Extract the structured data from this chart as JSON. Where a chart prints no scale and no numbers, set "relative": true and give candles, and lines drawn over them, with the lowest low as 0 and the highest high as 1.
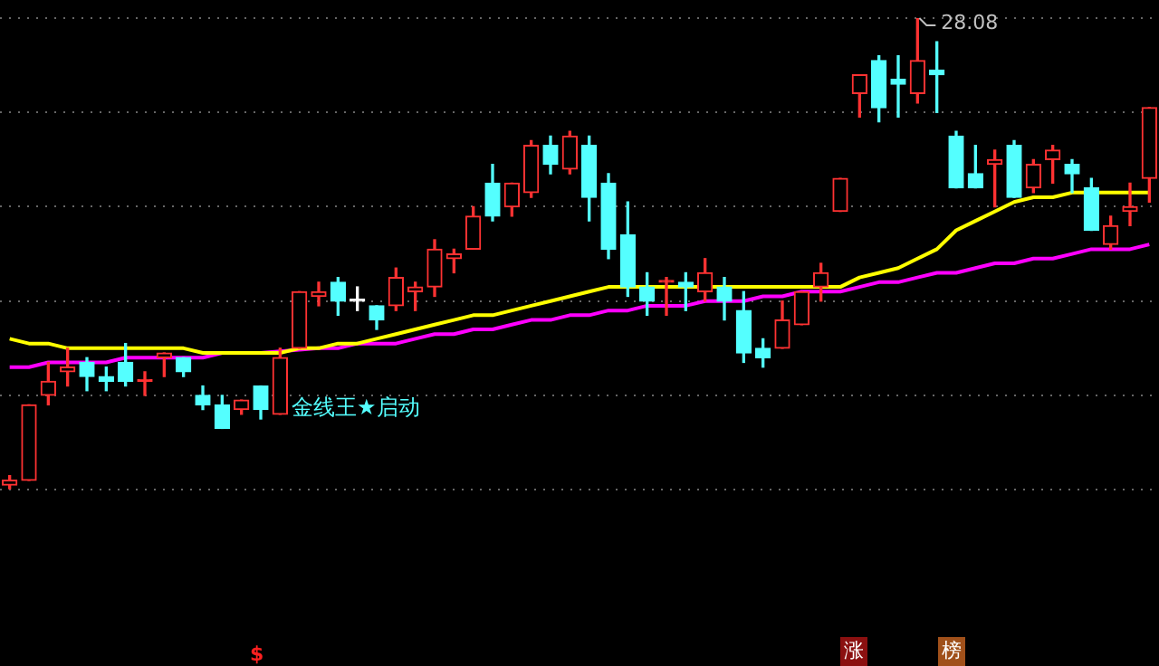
{
  "chart_data": {
    "type": "candlestick",
    "relative": true,
    "grid": "y",
    "legend": false,
    "categories": [
      null,
      null,
      null,
      null,
      null,
      null,
      null,
      null,
      null,
      null,
      null,
      null,
      null,
      null,
      null,
      null,
      null,
      null,
      null,
      null,
      null,
      null,
      null,
      null,
      null,
      null,
      null,
      null,
      null,
      null,
      null,
      null,
      null,
      null,
      null,
      null,
      null,
      null,
      null,
      null,
      null,
      null,
      null,
      null,
      null,
      null,
      null,
      null,
      null,
      null,
      null,
      null,
      null,
      null,
      null,
      null,
      null,
      null,
      null,
      null
    ],
    "ohlc": [
      [
        0.01,
        0.03,
        0,
        0.02
      ],
      [
        0.02,
        0.18,
        0.02,
        0.18
      ],
      [
        0.2,
        0.27,
        0.18,
        0.23
      ],
      [
        0.25,
        0.3,
        0.22,
        0.26
      ],
      [
        0.27,
        0.28,
        0.21,
        0.24
      ],
      [
        0.24,
        0.26,
        0.21,
        0.23
      ],
      [
        0.27,
        0.31,
        0.22,
        0.23
      ],
      [
        0.23,
        0.25,
        0.2,
        0.23
      ],
      [
        0.28,
        0.29,
        0.24,
        0.29
      ],
      [
        0.28,
        0.28,
        0.24,
        0.25
      ],
      [
        0.2,
        0.22,
        0.17,
        0.18
      ],
      [
        0.18,
        0.2,
        0.13,
        0.13
      ],
      [
        0.17,
        0.19,
        0.16,
        0.19
      ],
      [
        0.22,
        0.22,
        0.15,
        0.17
      ],
      [
        0.16,
        0.3,
        0.16,
        0.28
      ],
      [
        0.3,
        0.42,
        0.3,
        0.42
      ],
      [
        0.41,
        0.44,
        0.39,
        0.42
      ],
      [
        0.44,
        0.45,
        0.37,
        0.4
      ],
      [
        0.4,
        0.43,
        0.38,
        0.4
      ],
      [
        0.39,
        0.39,
        0.34,
        0.36
      ],
      [
        0.39,
        0.47,
        0.38,
        0.45
      ],
      [
        0.42,
        0.44,
        0.38,
        0.43
      ],
      [
        0.43,
        0.53,
        0.41,
        0.51
      ],
      [
        0.49,
        0.51,
        0.46,
        0.5
      ],
      [
        0.51,
        0.6,
        0.51,
        0.58
      ],
      [
        0.65,
        0.69,
        0.57,
        0.58
      ],
      [
        0.6,
        0.65,
        0.58,
        0.65
      ],
      [
        0.63,
        0.74,
        0.62,
        0.73
      ],
      [
        0.73,
        0.75,
        0.67,
        0.69
      ],
      [
        0.68,
        0.76,
        0.67,
        0.75
      ],
      [
        0.73,
        0.75,
        0.57,
        0.62
      ],
      [
        0.65,
        0.67,
        0.49,
        0.51
      ],
      [
        0.54,
        0.61,
        0.41,
        0.43
      ],
      [
        0.43,
        0.46,
        0.37,
        0.4
      ],
      [
        0.44,
        0.45,
        0.37,
        0.44
      ],
      [
        0.44,
        0.46,
        0.38,
        0.43
      ],
      [
        0.42,
        0.49,
        0.4,
        0.46
      ],
      [
        0.43,
        0.45,
        0.36,
        0.4
      ],
      [
        0.38,
        0.42,
        0.27,
        0.29
      ],
      [
        0.3,
        0.32,
        0.26,
        0.28
      ],
      [
        0.3,
        0.4,
        0.3,
        0.36
      ],
      [
        0.35,
        0.42,
        0.35,
        0.42
      ],
      [
        0.43,
        0.48,
        0.4,
        0.46
      ],
      [
        0.59,
        0.66,
        0.59,
        0.66
      ],
      [
        0.84,
        0.88,
        0.79,
        0.88
      ],
      [
        0.91,
        0.92,
        0.78,
        0.81
      ],
      [
        0.87,
        0.92,
        0.79,
        0.86
      ],
      [
        0.84,
        1,
        0.82,
        0.91
      ],
      [
        0.89,
        0.95,
        0.8,
        0.88
      ],
      [
        0.75,
        0.76,
        0.64,
        0.64
      ],
      [
        0.67,
        0.73,
        0.64,
        0.64
      ],
      [
        0.69,
        0.72,
        0.6,
        0.7
      ],
      [
        0.73,
        0.74,
        0.62,
        0.62
      ],
      [
        0.64,
        0.7,
        0.63,
        0.69
      ],
      [
        0.7,
        0.73,
        0.65,
        0.72
      ],
      [
        0.69,
        0.7,
        0.63,
        0.67
      ],
      [
        0.64,
        0.66,
        0.55,
        0.55
      ],
      [
        0.52,
        0.58,
        0.51,
        0.56
      ],
      [
        0.59,
        0.65,
        0.56,
        0.6
      ],
      [
        0.66,
        0.81,
        0.61,
        0.81
      ]
    ],
    "colors": [
      "#ff3232",
      "#ff3232",
      "#ff3232",
      "#ff3232",
      "#54ffff",
      "#54ffff",
      "#54ffff",
      "#ff3232",
      "#ff3232",
      "#54ffff",
      "#54ffff",
      "#54ffff",
      "#ff3232",
      "#54ffff",
      "#ff3232",
      "#ff3232",
      "#ff3232",
      "#54ffff",
      "#ffffff",
      "#54ffff",
      "#ff3232",
      "#ff3232",
      "#ff3232",
      "#ff3232",
      "#ff3232",
      "#54ffff",
      "#ff3232",
      "#ff3232",
      "#54ffff",
      "#ff3232",
      "#54ffff",
      "#54ffff",
      "#54ffff",
      "#54ffff",
      "#ff3232",
      "#54ffff",
      "#ff3232",
      "#54ffff",
      "#54ffff",
      "#54ffff",
      "#ff3232",
      "#ff3232",
      "#ff3232",
      "#ff3232",
      "#ff3232",
      "#54ffff",
      "#54ffff",
      "#ff3232",
      "#54ffff",
      "#54ffff",
      "#54ffff",
      "#ff3232",
      "#54ffff",
      "#ff3232",
      "#ff3232",
      "#54ffff",
      "#54ffff",
      "#ff3232",
      "#ff3232",
      "#ff3232"
    ],
    "series": [
      {
        "type": "line",
        "color": "#ffff00",
        "values": [
          0.32,
          0.31,
          0.31,
          0.3,
          0.3,
          0.3,
          0.3,
          0.3,
          0.3,
          0.3,
          0.29,
          0.29,
          0.29,
          0.29,
          0.29,
          0.3,
          0.3,
          0.31,
          0.31,
          0.32,
          0.33,
          0.34,
          0.35,
          0.36,
          0.37,
          0.37,
          0.38,
          0.39,
          0.4,
          0.41,
          0.42,
          0.43,
          0.43,
          0.43,
          0.43,
          0.43,
          null,
          0.43,
          0.43,
          0.43,
          0.43,
          0.43,
          0.43,
          0.43,
          0.45,
          0.46,
          0.47,
          0.49,
          0.51,
          0.55,
          0.57,
          0.59,
          0.61,
          0.62,
          0.62,
          0.63,
          null,
          0.63,
          0.63,
          0.63
        ]
      },
      {
        "type": "line",
        "color": "#ff00ff",
        "values": [
          0.26,
          0.26,
          0.27,
          0.27,
          0.27,
          0.27,
          0.28,
          0.28,
          0.28,
          0.28,
          0.28,
          0.29,
          null,
          0.29,
          null,
          null,
          0.3,
          0.3,
          0.31,
          0.31,
          0.31,
          0.32,
          0.33,
          0.33,
          0.34,
          0.34,
          0.35,
          0.36,
          0.36,
          0.37,
          0.37,
          0.38,
          0.38,
          0.39,
          0.39,
          0.39,
          0.4,
          0.4,
          0.4,
          0.41,
          0.41,
          0.42,
          0.42,
          0.42,
          0.43,
          0.44,
          0.44,
          0.45,
          0.46,
          0.46,
          0.47,
          0.48,
          0.48,
          0.49,
          0.49,
          0.5,
          0.51,
          0.51,
          0.51,
          0.52
        ]
      }
    ],
    "annotations": [
      "28.08",
      "金线王★启动",
      "$",
      "涨",
      "榜"
    ]
  }
}
